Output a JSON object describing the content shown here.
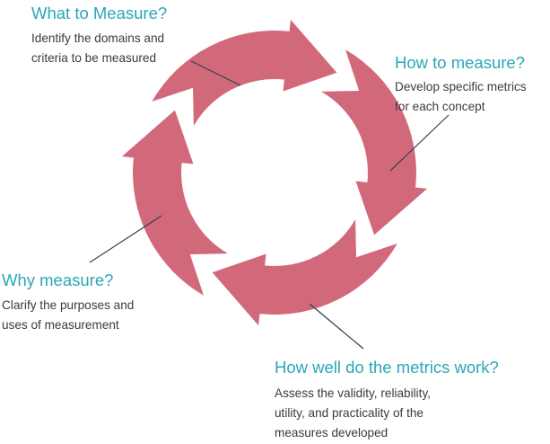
{
  "diagram": {
    "arrow_color": "#d2697a",
    "title_color": "#2aa7b8",
    "text_color": "#3b3b3b",
    "line_color": "#2c3f52",
    "steps": [
      {
        "title": "What to Measure?",
        "description": [
          "Identify the domains and",
          "criteria to be measured"
        ]
      },
      {
        "title": "How to measure?",
        "description": [
          "Develop specific metrics",
          "for each concept"
        ]
      },
      {
        "title": "Why measure?",
        "description": [
          "Clarify the purposes and",
          "uses of measurement"
        ]
      },
      {
        "title": "How well do the metrics work?",
        "description": [
          "Assess the validity, reliability,",
          "utility, and practicality of the",
          "measures developed"
        ]
      }
    ]
  }
}
